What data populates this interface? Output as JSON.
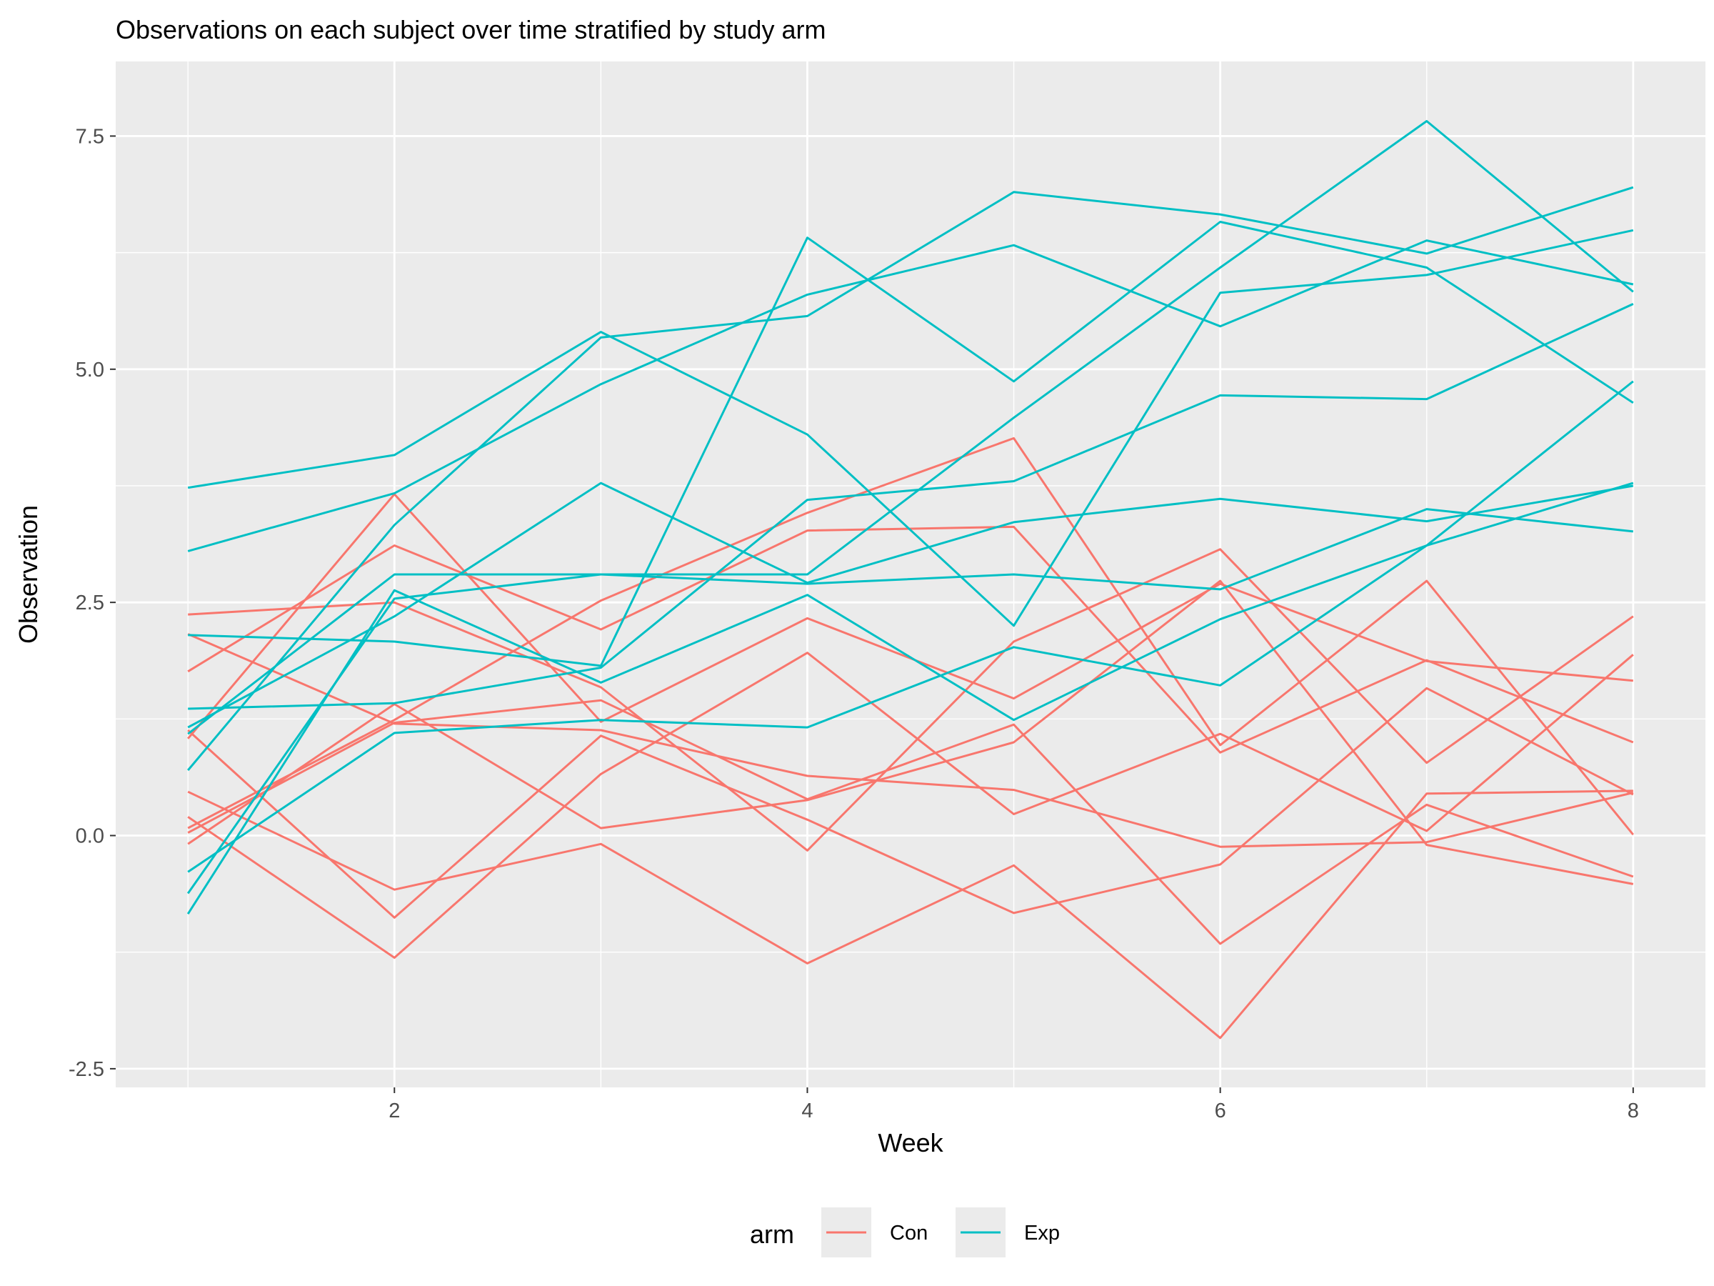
{
  "chart_data": {
    "type": "line",
    "title": "Observations on each subject over time stratified by study arm",
    "xlabel": "Week",
    "ylabel": "Observation",
    "xlim": [
      0.65,
      8.35
    ],
    "ylim": [
      -2.7,
      8.3
    ],
    "x_ticks": [
      2,
      4,
      6,
      8
    ],
    "x_tick_labels": [
      "2",
      "4",
      "6",
      "8"
    ],
    "x_minor": [
      1,
      3,
      5,
      7
    ],
    "y_ticks": [
      -2.5,
      0,
      2.5,
      5,
      7.5
    ],
    "y_tick_labels": [
      "-2.5",
      "0.0",
      "2.5",
      "5.0",
      "7.5"
    ],
    "y_minor": [
      -1.25,
      1.25,
      3.75,
      6.25
    ],
    "grid": true,
    "legend": {
      "title": "arm",
      "position": "bottom",
      "entries": [
        {
          "label": "Con",
          "color": "#F8766D"
        },
        {
          "label": "Exp",
          "color": "#00BFC4"
        }
      ]
    },
    "x": [
      1,
      2,
      3,
      4,
      5,
      6,
      7,
      8
    ],
    "series": [
      {
        "arm": "Con",
        "color": "#F8766D",
        "values": [
          0.2,
          -1.31,
          0.66,
          1.96,
          0.23,
          1.09,
          0.05,
          1.94
        ]
      },
      {
        "arm": "Con",
        "color": "#F8766D",
        "values": [
          1.13,
          -0.88,
          1.07,
          0.17,
          -0.83,
          -0.31,
          1.58,
          0.44
        ]
      },
      {
        "arm": "Con",
        "color": "#F8766D",
        "values": [
          2.16,
          1.2,
          1.13,
          0.64,
          0.49,
          -0.12,
          -0.07,
          0.46
        ]
      },
      {
        "arm": "Con",
        "color": "#F8766D",
        "values": [
          1.04,
          3.66,
          1.22,
          2.33,
          1.47,
          2.7,
          1.87,
          1.66
        ]
      },
      {
        "arm": "Con",
        "color": "#F8766D",
        "values": [
          0.47,
          -0.58,
          -0.09,
          -1.37,
          -0.32,
          -2.17,
          0.45,
          0.48
        ]
      },
      {
        "arm": "Con",
        "color": "#F8766D",
        "values": [
          2.37,
          2.5,
          1.59,
          -0.16,
          2.08,
          3.07,
          0.78,
          2.35
        ]
      },
      {
        "arm": "Con",
        "color": "#F8766D",
        "values": [
          0.03,
          1.21,
          1.45,
          0.39,
          1.19,
          -1.16,
          0.33,
          -0.44
        ]
      },
      {
        "arm": "Con",
        "color": "#F8766D",
        "values": [
          -0.09,
          1.41,
          0.08,
          0.38,
          1.0,
          2.73,
          -0.1,
          -0.52
        ]
      },
      {
        "arm": "Con",
        "color": "#F8766D",
        "values": [
          0.08,
          1.24,
          2.52,
          3.46,
          4.26,
          0.97,
          2.73,
          0.01
        ]
      },
      {
        "arm": "Con",
        "color": "#F8766D",
        "values": [
          1.76,
          3.11,
          2.21,
          3.27,
          3.31,
          0.89,
          1.88,
          1.0
        ]
      },
      {
        "arm": "Exp",
        "color": "#00BFC4",
        "values": [
          3.05,
          3.67,
          4.84,
          5.8,
          6.33,
          5.46,
          6.38,
          5.91
        ]
      },
      {
        "arm": "Exp",
        "color": "#00BFC4",
        "values": [
          -0.84,
          2.63,
          1.64,
          2.58,
          1.24,
          2.32,
          3.11,
          3.78
        ]
      },
      {
        "arm": "Exp",
        "color": "#00BFC4",
        "values": [
          2.15,
          2.08,
          1.82,
          6.41,
          4.87,
          6.58,
          6.09,
          4.64
        ]
      },
      {
        "arm": "Exp",
        "color": "#00BFC4",
        "values": [
          -0.62,
          2.54,
          2.8,
          2.8,
          4.48,
          6.09,
          7.66,
          5.83
        ]
      },
      {
        "arm": "Exp",
        "color": "#00BFC4",
        "values": [
          0.7,
          3.33,
          5.34,
          5.57,
          6.9,
          6.66,
          6.24,
          6.95
        ]
      },
      {
        "arm": "Exp",
        "color": "#00BFC4",
        "values": [
          3.73,
          4.08,
          5.4,
          4.3,
          2.25,
          5.82,
          6.01,
          6.49
        ]
      },
      {
        "arm": "Exp",
        "color": "#00BFC4",
        "values": [
          1.09,
          2.8,
          2.8,
          2.7,
          2.8,
          2.64,
          3.5,
          3.26
        ]
      },
      {
        "arm": "Exp",
        "color": "#00BFC4",
        "values": [
          1.36,
          1.42,
          1.8,
          3.6,
          3.8,
          4.72,
          4.68,
          5.7
        ]
      },
      {
        "arm": "Exp",
        "color": "#00BFC4",
        "values": [
          1.16,
          2.35,
          3.78,
          2.71,
          3.36,
          3.61,
          3.37,
          3.75
        ]
      },
      {
        "arm": "Exp",
        "color": "#00BFC4",
        "values": [
          -0.39,
          1.1,
          1.24,
          1.16,
          2.02,
          1.61,
          3.11,
          4.87
        ]
      }
    ]
  }
}
